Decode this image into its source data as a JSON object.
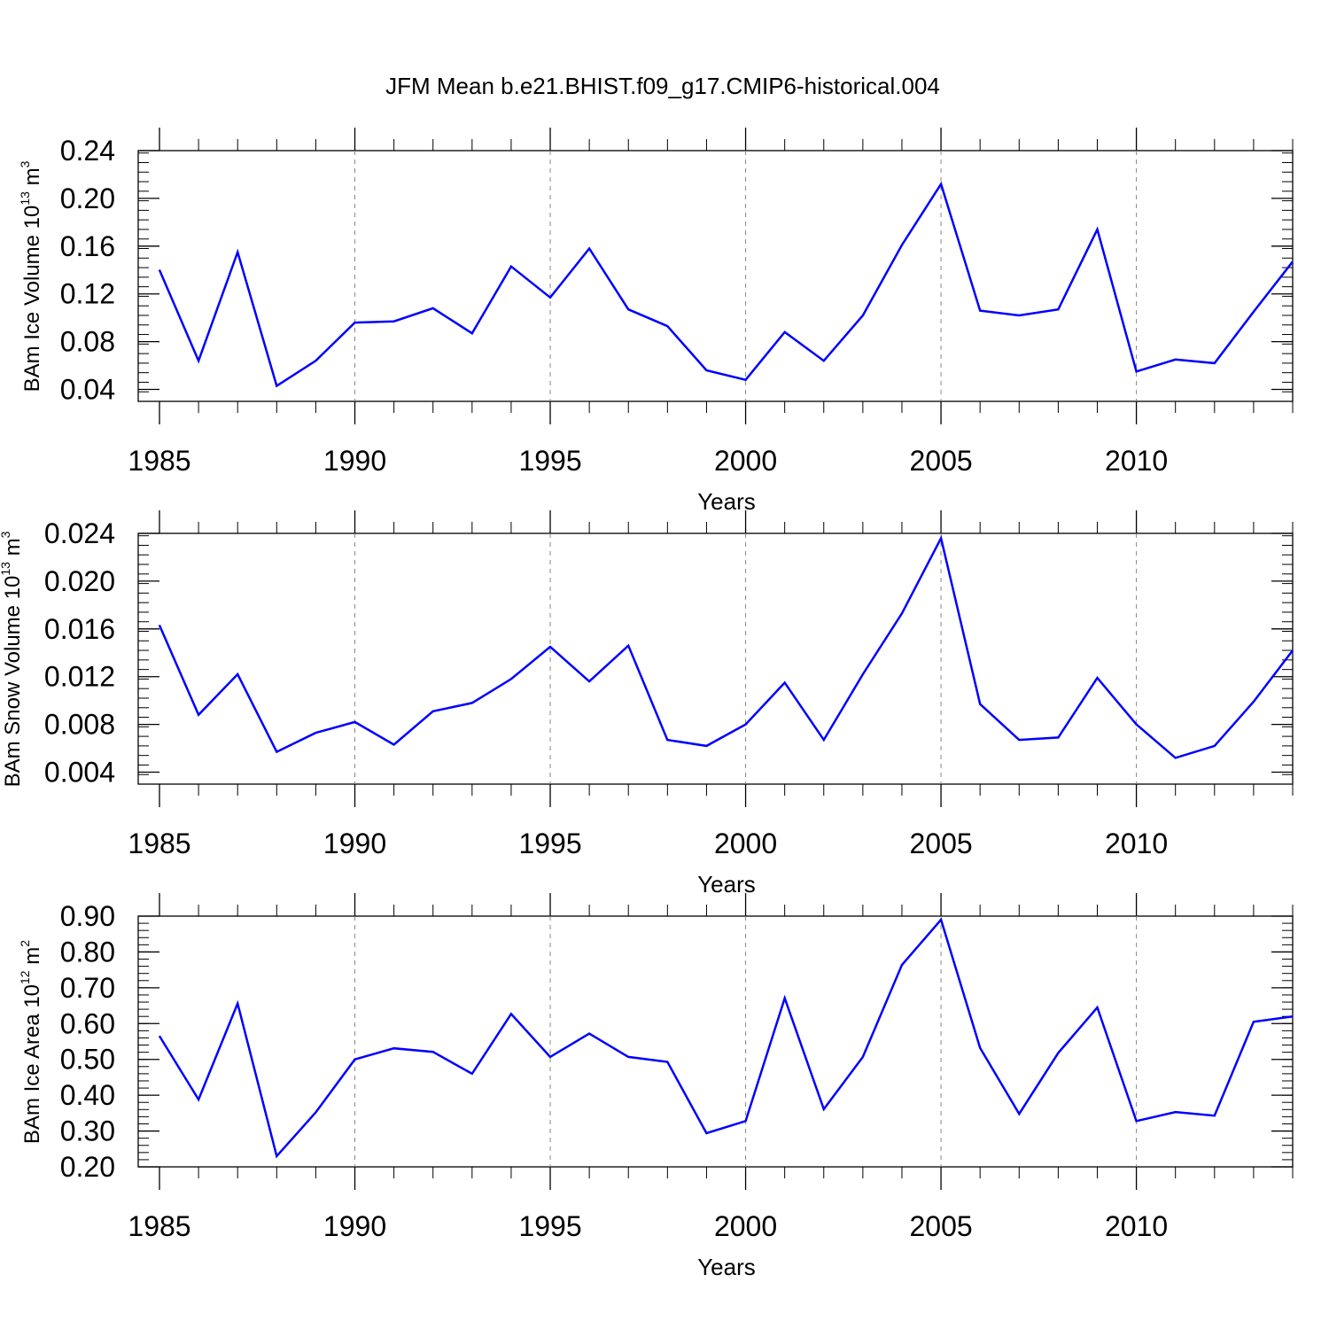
{
  "title": "JFM Mean b.e21.BHIST.f09_g17.CMIP6-historical.004",
  "colors": {
    "series": "#0000ff",
    "axis": "#000000",
    "grid": "#888888"
  },
  "chart_data": [
    {
      "type": "line",
      "ylabel_main": "BAm Ice Volume 10",
      "ylabel_exp": "13",
      "ylabel_unit": " m",
      "ylabel_unit_exp": "3",
      "xlabel": "Years",
      "xlim": [
        1985,
        2014
      ],
      "ylim": [
        0.03,
        0.24
      ],
      "yticks": [
        "0.04",
        "0.08",
        "0.12",
        "0.16",
        "0.20",
        "0.24"
      ],
      "xticks": [
        "1985",
        "1990",
        "1995",
        "2000",
        "2005",
        "2010"
      ],
      "x": [
        1985,
        1986,
        1987,
        1988,
        1989,
        1990,
        1991,
        1992,
        1993,
        1994,
        1995,
        1996,
        1997,
        1998,
        1999,
        2000,
        2001,
        2002,
        2003,
        2004,
        2005,
        2006,
        2007,
        2008,
        2009,
        2010,
        2011,
        2012,
        2013,
        2014
      ],
      "values": [
        0.14,
        0.064,
        0.155,
        0.043,
        0.064,
        0.096,
        0.097,
        0.108,
        0.087,
        0.143,
        0.117,
        0.158,
        0.107,
        0.093,
        0.056,
        0.048,
        0.088,
        0.064,
        0.102,
        0.161,
        0.212,
        0.106,
        0.102,
        0.107,
        0.174,
        0.055,
        0.065,
        0.062,
        0.105,
        0.147
      ]
    },
    {
      "type": "line",
      "ylabel_main": "BAm Snow Volume 10",
      "ylabel_exp": "13",
      "ylabel_unit": " m",
      "ylabel_unit_exp": "3",
      "xlabel": "Years",
      "xlim": [
        1985,
        2014
      ],
      "ylim": [
        0.003,
        0.024
      ],
      "yticks": [
        "0.004",
        "0.008",
        "0.012",
        "0.016",
        "0.020",
        "0.024"
      ],
      "xticks": [
        "1985",
        "1990",
        "1995",
        "2000",
        "2005",
        "2010"
      ],
      "x": [
        1985,
        1986,
        1987,
        1988,
        1989,
        1990,
        1991,
        1992,
        1993,
        1994,
        1995,
        1996,
        1997,
        1998,
        1999,
        2000,
        2001,
        2002,
        2003,
        2004,
        2005,
        2006,
        2007,
        2008,
        2009,
        2010,
        2011,
        2012,
        2013,
        2014
      ],
      "values": [
        0.0163,
        0.0088,
        0.0122,
        0.0057,
        0.0073,
        0.0082,
        0.0063,
        0.0091,
        0.0098,
        0.0118,
        0.0145,
        0.0116,
        0.0146,
        0.0067,
        0.0062,
        0.008,
        0.0115,
        0.0067,
        0.0122,
        0.0173,
        0.0236,
        0.0097,
        0.0067,
        0.0069,
        0.0119,
        0.008,
        0.0052,
        0.0062,
        0.0099,
        0.0142
      ]
    },
    {
      "type": "line",
      "ylabel_main": "BAm Ice Area 10",
      "ylabel_exp": "12",
      "ylabel_unit": " m",
      "ylabel_unit_exp": "2",
      "xlabel": "Years",
      "xlim": [
        1985,
        2014
      ],
      "ylim": [
        0.2,
        0.9
      ],
      "yticks": [
        "0.20",
        "0.30",
        "0.40",
        "0.50",
        "0.60",
        "0.70",
        "0.80",
        "0.90"
      ],
      "xticks": [
        "1985",
        "1990",
        "1995",
        "2000",
        "2005",
        "2010"
      ],
      "x": [
        1985,
        1986,
        1987,
        1988,
        1989,
        1990,
        1991,
        1992,
        1993,
        1994,
        1995,
        1996,
        1997,
        1998,
        1999,
        2000,
        2001,
        2002,
        2003,
        2004,
        2005,
        2006,
        2007,
        2008,
        2009,
        2010,
        2011,
        2012,
        2013,
        2014
      ],
      "values": [
        0.565,
        0.388,
        0.656,
        0.23,
        0.352,
        0.5,
        0.531,
        0.521,
        0.46,
        0.627,
        0.507,
        0.572,
        0.507,
        0.493,
        0.294,
        0.328,
        0.671,
        0.361,
        0.507,
        0.764,
        0.89,
        0.532,
        0.348,
        0.518,
        0.645,
        0.328,
        0.353,
        0.343,
        0.605,
        0.62
      ]
    }
  ]
}
